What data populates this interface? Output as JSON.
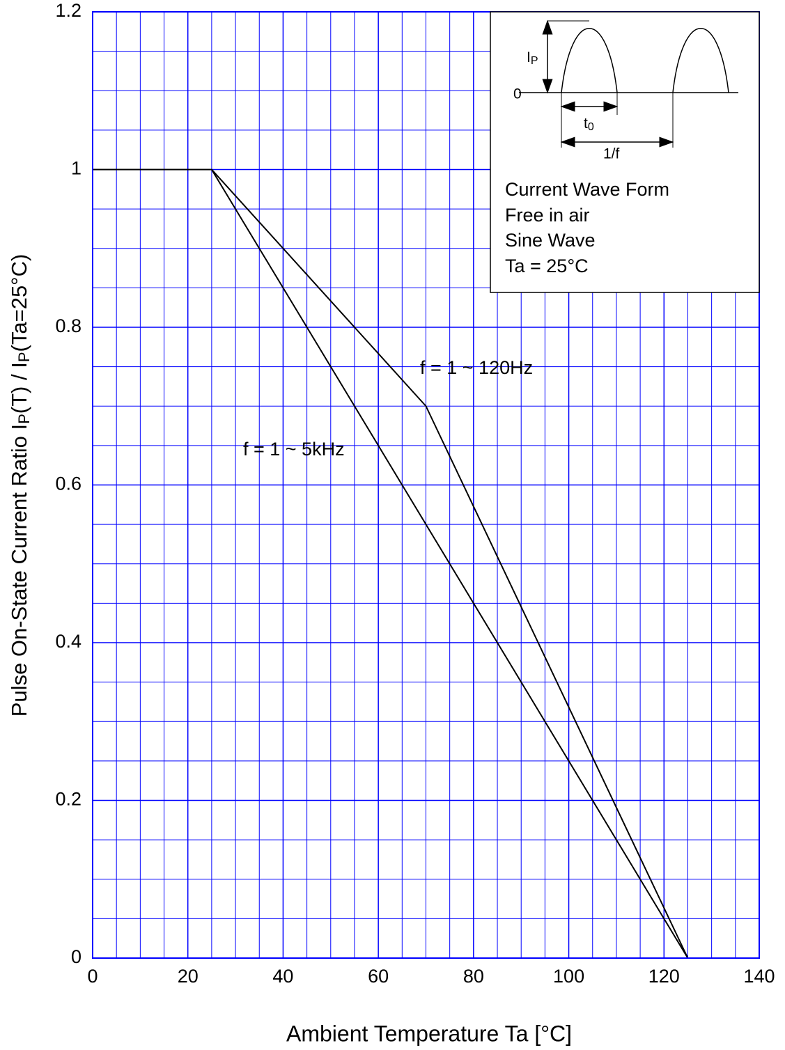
{
  "chart_data": {
    "type": "line",
    "x_label": "Ambient Temperature  Ta  [°C]",
    "y_label": [
      "Pulse On-State Current Ratio  I",
      "P",
      "(T) / I",
      "P",
      "(Ta=25°C)"
    ],
    "series": [
      {
        "name": "f = 1 ~ 120Hz",
        "color": "#000000",
        "x": [
          0,
          25,
          70,
          125
        ],
        "values": [
          1,
          1,
          0.7,
          0
        ]
      },
      {
        "name": "f = 1 ~ 5kHz",
        "color": "#000000",
        "x": [
          0,
          25,
          125
        ],
        "values": [
          1,
          1,
          0
        ]
      }
    ],
    "xlim": [
      0,
      140
    ],
    "xticks": [
      0,
      20,
      40,
      60,
      80,
      100,
      120,
      140
    ],
    "ylim": [
      0,
      1.2
    ],
    "yticks": [
      0,
      0.2,
      0.4,
      0.6,
      0.8,
      1,
      1.2
    ],
    "grid": true,
    "grid_color": "#0000ff",
    "minor_divisions": 4,
    "inset": {
      "peak_label": [
        "I",
        "P"
      ],
      "zero_label": "0",
      "width_label": [
        "t",
        "0"
      ],
      "period_label": "1/f",
      "notes": [
        "Current Wave Form",
        "Free in air",
        "Sine Wave",
        "Ta = 25°C"
      ]
    }
  }
}
